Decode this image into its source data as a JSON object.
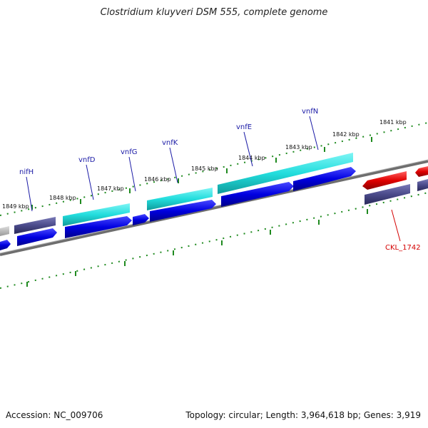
{
  "title": "Clostridium kluyveri DSM 555, complete genome",
  "footer": {
    "accession": "Accession: NC_009706",
    "summary": "Topology: circular; Length: 3,964,618 bp; Genes: 3,919"
  },
  "ticks": [
    {
      "label": "1849 kbp"
    },
    {
      "label": "1848 kbp"
    },
    {
      "label": "1847 kbp"
    },
    {
      "label": "1846 kbp"
    },
    {
      "label": "1845 kbp"
    },
    {
      "label": "1844 kbp"
    },
    {
      "label": "1843 kbp"
    },
    {
      "label": "1842 kbp"
    },
    {
      "label": "1841 kbp"
    }
  ],
  "genes": [
    {
      "label": "nifH"
    },
    {
      "label": "vnfD"
    },
    {
      "label": "vnfG"
    },
    {
      "label": "vnfK"
    },
    {
      "label": "vnfE"
    },
    {
      "label": "vnfN"
    },
    {
      "label": "CKL_1742"
    }
  ],
  "colors": {
    "cds": "#0000e0",
    "rna_cyan": "#22dddd",
    "feature_purple": "#4a4a8a",
    "highlight_red": "#e00000",
    "tick_green": "#1f8a1f",
    "backbone": "#8a8a8a",
    "label_blue": "#1a1aa6",
    "label_red": "#d40000"
  }
}
